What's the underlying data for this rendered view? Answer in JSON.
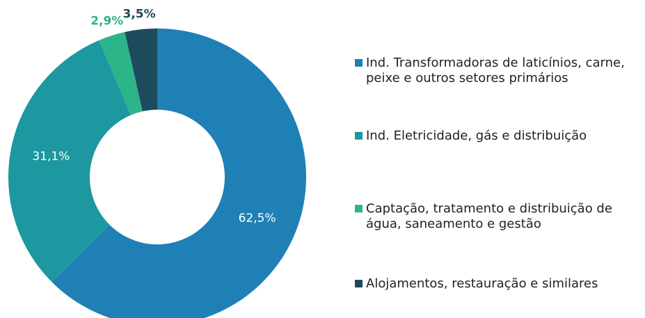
{
  "chart_data": {
    "type": "donut",
    "categories": [
      "Ind. Transformadoras de laticínios, carne, peixe e outros setores primários",
      "Ind. Eletricidade, gás e distribuição",
      "Captação, tratamento e distribuição de água, saneamento e gestão",
      "Alojamentos, restauração e similares"
    ],
    "values": [
      62.5,
      31.1,
      2.9,
      3.5
    ],
    "value_labels": [
      "62,5%",
      "31,1%",
      "2,9%",
      "3,5%"
    ],
    "colors": [
      "#1f80b6",
      "#1d97a0",
      "#2cb589",
      "#1d4a5c"
    ],
    "legend": "right"
  }
}
